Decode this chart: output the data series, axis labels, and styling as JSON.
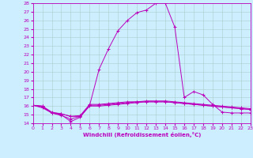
{
  "xlabel": "Windchill (Refroidissement éolien,°C)",
  "xlim": [
    0,
    23
  ],
  "ylim": [
    14,
    28
  ],
  "yticks": [
    14,
    15,
    16,
    17,
    18,
    19,
    20,
    21,
    22,
    23,
    24,
    25,
    26,
    27,
    28
  ],
  "xticks": [
    0,
    1,
    2,
    3,
    4,
    5,
    6,
    7,
    8,
    9,
    10,
    11,
    12,
    13,
    14,
    15,
    16,
    17,
    18,
    19,
    20,
    21,
    22,
    23
  ],
  "bg_color": "#cceeff",
  "line_color": "#bb00bb",
  "grid_color": "#aacccc",
  "lines": [
    [
      16.1,
      16.0,
      15.2,
      15.0,
      14.2,
      14.7,
      16.1,
      20.3,
      22.7,
      24.8,
      26.0,
      26.9,
      27.2,
      28.0,
      28.0,
      25.2,
      17.0,
      17.7,
      17.3,
      16.2,
      15.3,
      15.2,
      15.2,
      15.2
    ],
    [
      16.1,
      15.8,
      15.2,
      15.1,
      14.8,
      14.9,
      16.2,
      16.2,
      16.3,
      16.4,
      16.5,
      16.5,
      16.6,
      16.6,
      16.6,
      16.5,
      16.4,
      16.3,
      16.2,
      16.1,
      16.0,
      15.9,
      15.8,
      15.7
    ],
    [
      16.1,
      15.9,
      15.2,
      14.9,
      14.5,
      14.8,
      16.0,
      16.0,
      16.1,
      16.2,
      16.3,
      16.4,
      16.5,
      16.5,
      16.5,
      16.4,
      16.3,
      16.2,
      16.1,
      16.0,
      15.9,
      15.8,
      15.7,
      15.6
    ],
    [
      16.1,
      16.0,
      15.3,
      15.1,
      14.8,
      14.8,
      16.1,
      16.1,
      16.2,
      16.3,
      16.4,
      16.5,
      16.5,
      16.5,
      16.5,
      16.4,
      16.3,
      16.2,
      16.1,
      16.0,
      15.9,
      15.8,
      15.7,
      15.6
    ]
  ]
}
